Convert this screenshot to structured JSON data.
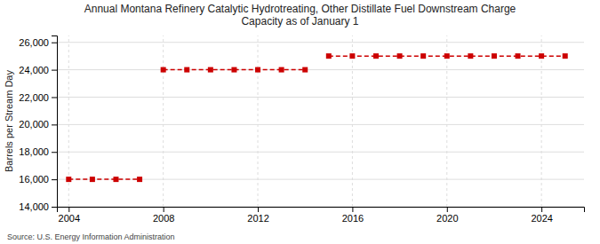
{
  "chart_data": {
    "type": "line",
    "title": "Annual Montana Refinery Catalytic Hydrotreating, Other Distillate Fuel Downstream Charge\nCapacity as of January 1",
    "ylabel": "Barrels per Stream Day",
    "source": "Source: U.S. Energy Information Administration",
    "x": [
      2004,
      2005,
      2006,
      2007,
      2008,
      2009,
      2010,
      2011,
      2012,
      2013,
      2014,
      2015,
      2016,
      2017,
      2018,
      2019,
      2020,
      2021,
      2022,
      2023,
      2024,
      2025
    ],
    "series": [
      {
        "color": "#cc0000",
        "values": [
          16000,
          16000,
          16000,
          16000,
          null,
          null,
          null,
          null,
          null,
          null,
          null,
          null,
          null,
          null,
          null,
          null,
          null,
          null,
          null,
          null,
          null,
          null
        ]
      },
      {
        "color": "#cc0000",
        "values": [
          null,
          null,
          null,
          null,
          24000,
          24000,
          24000,
          24000,
          24000,
          24000,
          24000,
          null,
          null,
          null,
          null,
          null,
          null,
          null,
          null,
          null,
          null,
          null
        ]
      },
      {
        "color": "#cc0000",
        "values": [
          null,
          null,
          null,
          null,
          null,
          null,
          null,
          null,
          null,
          null,
          null,
          25000,
          25000,
          25000,
          25000,
          25000,
          25000,
          25000,
          25000,
          25000,
          25000,
          25000
        ]
      }
    ],
    "marker": "square",
    "line_style": "dashed",
    "xlim": [
      2003.5,
      2025.8
    ],
    "xticks": [
      2004,
      2008,
      2012,
      2016,
      2020,
      2024
    ],
    "ylim": [
      14000,
      26500
    ],
    "yticks": [
      {
        "value": 14000,
        "label": "14,000"
      },
      {
        "value": 16000,
        "label": "16,000"
      },
      {
        "value": 18000,
        "label": "18,000"
      },
      {
        "value": 20000,
        "label": "20,000"
      },
      {
        "value": 22000,
        "label": "22,000"
      },
      {
        "value": 24000,
        "label": "24,000"
      },
      {
        "value": 26000,
        "label": "26,000"
      }
    ],
    "grid": true
  }
}
